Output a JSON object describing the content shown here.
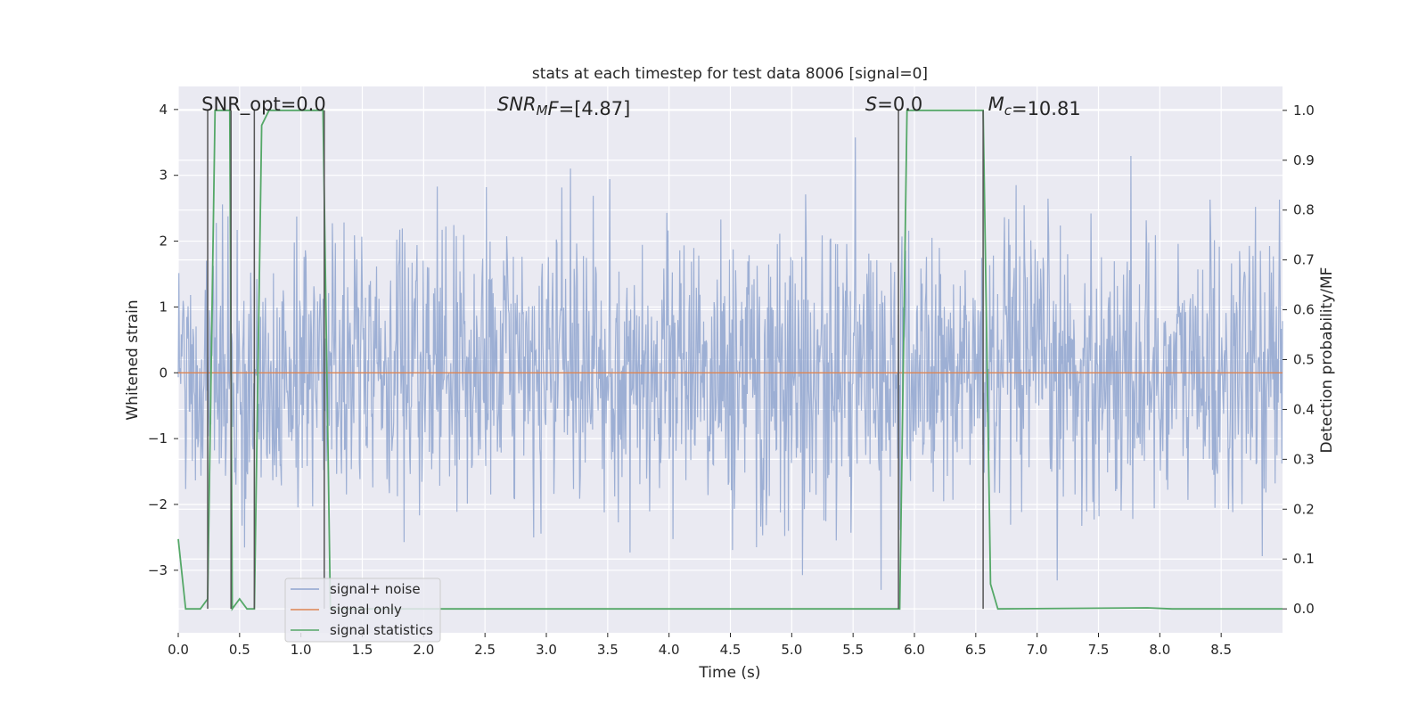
{
  "chart_data": {
    "type": "line",
    "title": "stats at each timestep for test data 8006 [signal=0]",
    "xlabel": "Time (s)",
    "ylabel": "Whitened strain",
    "y2label": "Detection probability/MF",
    "xlim": [
      0,
      9
    ],
    "ylim": [
      -3.95,
      4.35
    ],
    "y2lim": [
      -0.048,
      1.048
    ],
    "xticks": [
      0.0,
      0.5,
      1.0,
      1.5,
      2.0,
      2.5,
      3.0,
      3.5,
      4.0,
      4.5,
      5.0,
      5.5,
      6.0,
      6.5,
      7.0,
      7.5,
      8.0,
      8.5
    ],
    "yticks": [
      -3,
      -2,
      -1,
      0,
      1,
      2,
      3,
      4
    ],
    "y2ticks": [
      0.0,
      0.1,
      0.2,
      0.3,
      0.4,
      0.5,
      0.6,
      0.7,
      0.8,
      0.9,
      1.0
    ],
    "grid": true,
    "legend_position": "lower-left",
    "annotations": [
      {
        "id": "snr-opt",
        "parts": [
          {
            "t": "SNR_opt=0.0",
            "s": "n"
          }
        ],
        "x": 0.19
      },
      {
        "id": "snr-mf",
        "parts": [
          {
            "t": "SNR",
            "s": "i"
          },
          {
            "t": "M",
            "s": "sub"
          },
          {
            "t": "F",
            "s": "i"
          },
          {
            "t": "=[4.87]",
            "s": "n"
          }
        ],
        "x": 2.6
      },
      {
        "id": "s-value",
        "parts": [
          {
            "t": "S",
            "s": "i"
          },
          {
            "t": "=0.0",
            "s": "n"
          }
        ],
        "x": 5.6
      },
      {
        "id": "mc-value",
        "parts": [
          {
            "t": "M",
            "s": "i"
          },
          {
            "t": "c",
            "s": "sub"
          },
          {
            "t": "=10.81",
            "s": "n"
          }
        ],
        "x": 6.6
      }
    ],
    "series": [
      {
        "name": "signal+ noise",
        "color": "#8fa5cf",
        "axis": "left",
        "kind": "noise",
        "x_range": [
          0,
          9
        ],
        "samples": 1800,
        "amplitude_std": 1.0,
        "y_extent": [
          -3.6,
          3.8
        ]
      },
      {
        "name": "signal only",
        "color": "#dd8452",
        "axis": "left",
        "x": [
          0,
          9
        ],
        "y": [
          0,
          0
        ]
      },
      {
        "name": "signal statistics",
        "color": "#55a868",
        "axis": "right",
        "x": [
          0.0,
          0.06,
          0.18,
          0.24,
          0.3,
          0.42,
          0.44,
          0.5,
          0.56,
          0.62,
          0.68,
          0.74,
          1.18,
          1.24,
          1.3,
          5.86,
          5.88,
          5.94,
          6.56,
          6.62,
          6.68,
          7.9,
          8.1,
          9.0
        ],
        "y": [
          0.14,
          0.0,
          0.0,
          0.02,
          1.0,
          1.0,
          0.0,
          0.02,
          0.0,
          0.0,
          0.97,
          1.0,
          1.0,
          0.0,
          0.0,
          0.0,
          0.0,
          1.0,
          1.0,
          0.05,
          0.0,
          0.002,
          0.0,
          0.0
        ]
      }
    ],
    "vlines": {
      "color": "#555555",
      "x": [
        0.24,
        0.43,
        0.62,
        1.19,
        5.87,
        6.56
      ],
      "y2_range": [
        0.0,
        1.0
      ]
    }
  }
}
